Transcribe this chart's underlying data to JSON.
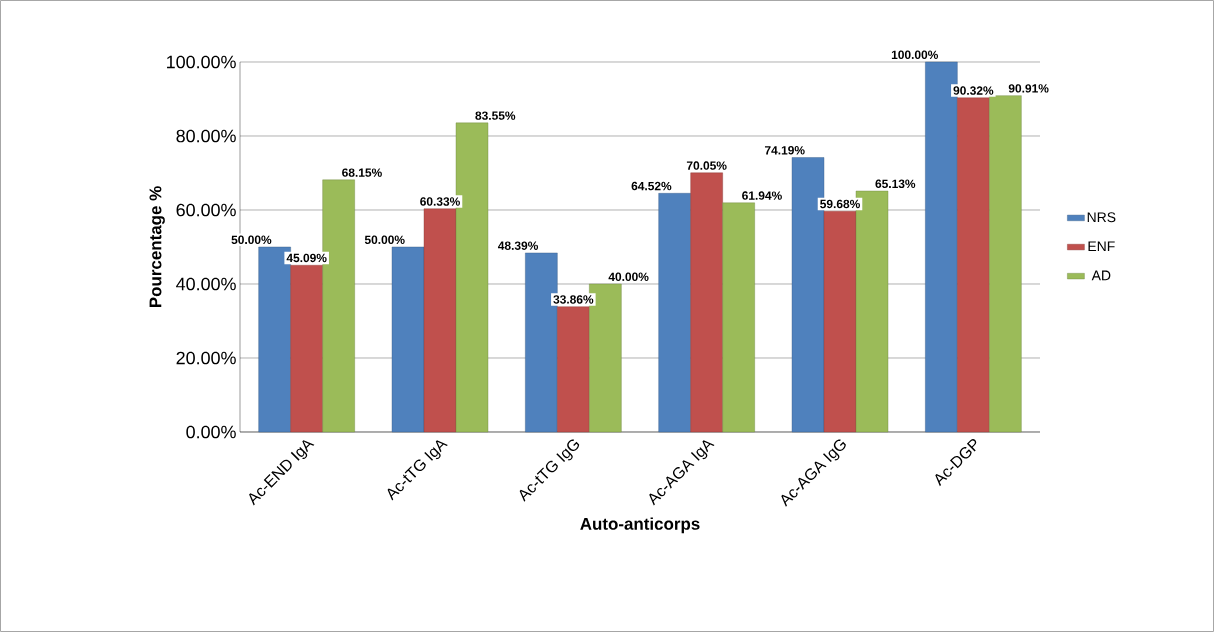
{
  "chart_data": {
    "type": "bar",
    "xlabel": "Auto-anticorps",
    "ylabel": "Pourcentage %",
    "categories": [
      "Ac-END IgA",
      "Ac-tTG IgA",
      "Ac-tTG IgG",
      "Ac-AGA IgA",
      "Ac-AGA IgG",
      "Ac-DGP"
    ],
    "series": [
      {
        "name": "NRS",
        "color": "#4f81bd",
        "values": [
          50.0,
          50.0,
          48.39,
          64.52,
          74.19,
          100.0
        ],
        "value_labels": [
          "50.00%",
          "50.00%",
          "48.39%",
          "64.52%",
          "74.19%",
          "100.00%"
        ]
      },
      {
        "name": "ENF",
        "color": "#c0504d",
        "values": [
          45.09,
          60.33,
          33.86,
          70.05,
          59.68,
          90.32
        ],
        "value_labels": [
          "45.09%",
          "60.33%",
          "33.86%",
          "70.05%",
          "59.68%",
          "90.32%"
        ]
      },
      {
        "name": "AD",
        "color": "#9bbb59",
        "values": [
          68.15,
          83.55,
          40.0,
          61.94,
          65.13,
          90.91
        ],
        "value_labels": [
          "68.15%",
          "83.55%",
          "40.00%",
          "61.94%",
          "65.13%",
          "90.91%"
        ]
      }
    ],
    "ylim": [
      0,
      100
    ],
    "yticks": [
      {
        "value": 0,
        "label": "0.00%"
      },
      {
        "value": 20,
        "label": "20.00%"
      },
      {
        "value": 40,
        "label": "40.00%"
      },
      {
        "value": 60,
        "label": "60.00%"
      },
      {
        "value": 80,
        "label": "80.00%"
      },
      {
        "value": 100,
        "label": "100.00%"
      }
    ],
    "grid": "y",
    "legend": "right"
  }
}
